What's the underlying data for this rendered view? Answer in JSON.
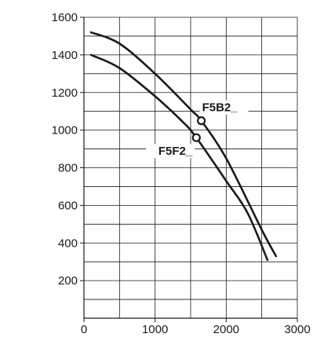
{
  "chart_data": {
    "type": "line",
    "title": "",
    "xlabel": "",
    "ylabel": "",
    "xlim": [
      0,
      3000
    ],
    "ylim": [
      0,
      1600
    ],
    "x_ticks": [
      0,
      1000,
      2000,
      3000
    ],
    "x_tick_labels": [
      "0",
      "1000",
      "2000",
      "3000"
    ],
    "y_ticks": [
      200,
      400,
      600,
      800,
      1000,
      1200,
      1400,
      1600
    ],
    "y_tick_labels": [
      "200",
      "400",
      "600",
      "800",
      "1000",
      "1200",
      "1400",
      "1600"
    ],
    "grid": true,
    "x_grid_step": 500,
    "y_grid_step": 100,
    "series": [
      {
        "name": "F5B2_",
        "color": "#1a1a1a",
        "x": [
          100,
          500,
          1000,
          1500,
          1650,
          2000,
          2500,
          2700
        ],
        "y": [
          1520,
          1460,
          1300,
          1110,
          1050,
          850,
          470,
          330
        ]
      },
      {
        "name": "F5F2_",
        "color": "#1a1a1a",
        "x": [
          100,
          500,
          1000,
          1400,
          1580,
          2000,
          2300,
          2580
        ],
        "y": [
          1400,
          1330,
          1180,
          1040,
          960,
          730,
          560,
          310
        ]
      }
    ],
    "markers": [
      {
        "series": "F5B2_",
        "x": 1650,
        "y": 1050,
        "shape": "open-circle"
      },
      {
        "series": "F5F2_",
        "x": 1580,
        "y": 960,
        "shape": "open-circle"
      }
    ]
  }
}
